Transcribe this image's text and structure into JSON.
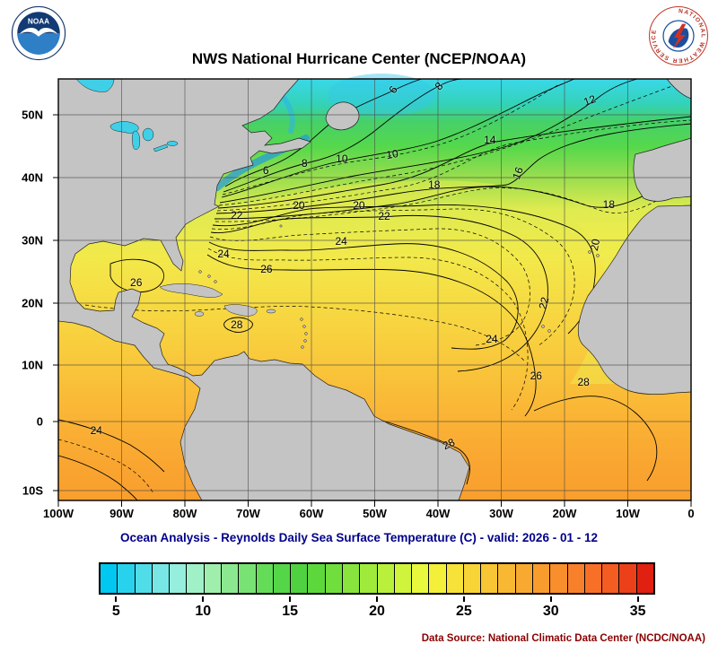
{
  "header": {
    "title": "NWS National Hurricane Center (NCEP/NOAA)"
  },
  "logos": {
    "noaa_text": "NOAA",
    "nws_ring_text": "NATIONAL WEATHER SERVICE"
  },
  "footer": {
    "subtitle": "Ocean Analysis - Reynolds Daily Sea Surface Temperature (C) - valid: 2026 - 01 - 12",
    "data_source": "Data Source: National Climatic Data Center (NCDC/NOAA)"
  },
  "colors": {
    "subtitle": "#00008b",
    "data_source": "#8b0000",
    "land": "#c4c4c4",
    "lake": "#3fd0e8"
  },
  "chart_data": {
    "type": "heatmap",
    "title": "NWS National Hurricane Center (NCEP/NOAA)",
    "subtitle": "Ocean Analysis - Reynolds Daily Sea Surface Temperature (C) - valid: 2026 - 01 - 12",
    "variable": "Reynolds Daily Sea Surface Temperature",
    "units": "C",
    "valid_date": "2026 - 01 - 12",
    "x_axis": {
      "labels": [
        "100W",
        "90W",
        "80W",
        "70W",
        "60W",
        "50W",
        "40W",
        "30W",
        "20W",
        "10W",
        "0"
      ],
      "lon_range": [
        -100,
        0
      ]
    },
    "y_axis": {
      "labels": [
        "50N",
        "40N",
        "30N",
        "20N",
        "10N",
        "0",
        "10S"
      ],
      "fractions": [
        0.085,
        0.234,
        0.383,
        0.532,
        0.679,
        0.813,
        0.977
      ],
      "lat_range_approx": [
        -12,
        56
      ]
    },
    "grid": true,
    "contour_interval_c": 2,
    "contour_levels_c": [
      6,
      8,
      10,
      12,
      14,
      16,
      18,
      20,
      22,
      24,
      26,
      28
    ],
    "contour_labels": [
      {
        "t": "6",
        "x": 0.529,
        "y": 0.026,
        "r": -55
      },
      {
        "t": "8",
        "x": 0.601,
        "y": 0.017,
        "r": -45
      },
      {
        "t": "12",
        "x": 0.84,
        "y": 0.051,
        "r": -20
      },
      {
        "t": "14",
        "x": 0.682,
        "y": 0.145,
        "r": 0
      },
      {
        "t": "10",
        "x": 0.528,
        "y": 0.179,
        "r": -10
      },
      {
        "t": "10",
        "x": 0.448,
        "y": 0.189,
        "r": 0
      },
      {
        "t": "8",
        "x": 0.389,
        "y": 0.2,
        "r": 0
      },
      {
        "t": "6",
        "x": 0.328,
        "y": 0.217,
        "r": 0
      },
      {
        "t": "16",
        "x": 0.726,
        "y": 0.223,
        "r": -70
      },
      {
        "t": "18",
        "x": 0.594,
        "y": 0.251,
        "r": 0
      },
      {
        "t": "18",
        "x": 0.87,
        "y": 0.298,
        "r": 0
      },
      {
        "t": "20",
        "x": 0.475,
        "y": 0.3,
        "r": 0
      },
      {
        "t": "20",
        "x": 0.38,
        "y": 0.3,
        "r": 0
      },
      {
        "t": "22",
        "x": 0.515,
        "y": 0.326,
        "r": 0
      },
      {
        "t": "22",
        "x": 0.282,
        "y": 0.323,
        "r": 0
      },
      {
        "t": "24",
        "x": 0.447,
        "y": 0.385,
        "r": 0
      },
      {
        "t": "24",
        "x": 0.261,
        "y": 0.415,
        "r": 0
      },
      {
        "t": "20",
        "x": 0.848,
        "y": 0.394,
        "r": -80
      },
      {
        "t": "26",
        "x": 0.329,
        "y": 0.451,
        "r": 0
      },
      {
        "t": "26",
        "x": 0.123,
        "y": 0.483,
        "r": 0
      },
      {
        "t": "28",
        "x": 0.282,
        "y": 0.583,
        "r": 0
      },
      {
        "t": "22",
        "x": 0.767,
        "y": 0.532,
        "r": -75
      },
      {
        "t": "24",
        "x": 0.685,
        "y": 0.617,
        "r": 0
      },
      {
        "t": "26",
        "x": 0.755,
        "y": 0.704,
        "r": 0
      },
      {
        "t": "28",
        "x": 0.83,
        "y": 0.719,
        "r": 0
      },
      {
        "t": "24",
        "x": 0.06,
        "y": 0.834,
        "r": 0
      },
      {
        "t": "28",
        "x": 0.617,
        "y": 0.866,
        "r": -25
      }
    ],
    "colorbar": {
      "min": 4,
      "max": 36,
      "interval": 1,
      "ticks": [
        5,
        10,
        15,
        20,
        25,
        30,
        35
      ],
      "colors": [
        "#00C8F0",
        "#28D2EC",
        "#50DCE8",
        "#78E6E4",
        "#96EEDC",
        "#A0F0C8",
        "#A0EEAC",
        "#8CE890",
        "#78E274",
        "#64DC58",
        "#55D648",
        "#50D240",
        "#5CD83C",
        "#70DE3C",
        "#88E43C",
        "#A0EA3C",
        "#B8F03C",
        "#D0F43C",
        "#E8F83C",
        "#F4F03A",
        "#F6E238",
        "#F8D436",
        "#F8C634",
        "#F8B832",
        "#F8AA30",
        "#F89C2E",
        "#F88E2C",
        "#F8802A",
        "#F87028",
        "#F45C22",
        "#EC401A",
        "#E02010"
      ]
    }
  }
}
